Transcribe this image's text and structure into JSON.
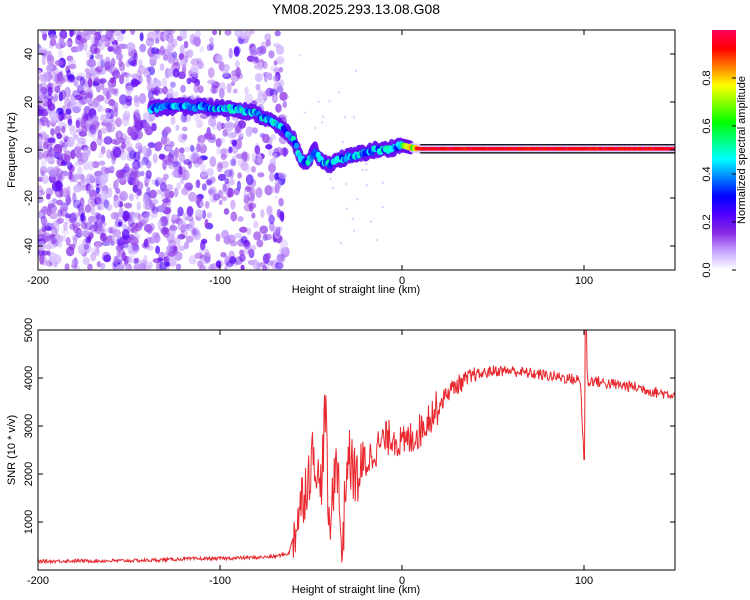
{
  "figure_title": "YM08.2025.293.13.08.G08",
  "chart_data": [
    {
      "type": "heatmap",
      "title": "YM08.2025.293.13.08.G08",
      "xlabel": "Height of straight line (km)",
      "ylabel": "Frequency (Hz)",
      "xlim": [
        -200,
        150
      ],
      "ylim": [
        -50,
        50
      ],
      "xticks": [
        -200,
        -100,
        0,
        100
      ],
      "yticks": [
        -40,
        -20,
        0,
        20,
        40
      ],
      "colorbar": {
        "label": "Normalized spectral amplitude",
        "range": [
          0,
          1
        ],
        "ticks": [
          0.0,
          0.2,
          0.4,
          0.6,
          0.8
        ],
        "tick_labels": [
          "0.0",
          "0.2",
          "0.4",
          "0.6",
          "0.8"
        ],
        "colors": [
          "#ffffff",
          "#c7a6ff",
          "#8a2be2",
          "#5000ff",
          "#0000ff",
          "#0080ff",
          "#00ffff",
          "#00ff80",
          "#00ff00",
          "#80ff00",
          "#ffff00",
          "#ff8000",
          "#ff0000",
          "#ff0060"
        ]
      },
      "ridge": {
        "description": "dominant frequency trace",
        "x": [
          -138,
          -130,
          -120,
          -110,
          -100,
          -90,
          -80,
          -72,
          -66,
          -60,
          -56,
          -52,
          -48,
          -44,
          -40,
          -35,
          -30,
          -25,
          -20,
          -15,
          -10,
          -5,
          0,
          5,
          10,
          20,
          40,
          60,
          80,
          100,
          120,
          150
        ],
        "y": [
          17,
          18,
          18,
          18,
          17.5,
          17,
          15,
          12,
          9,
          5,
          -3,
          -6,
          0,
          -5,
          -6,
          -4,
          -3,
          -2,
          -1,
          0,
          0,
          1,
          2,
          1,
          0.5,
          0.5,
          0.5,
          0.5,
          0.5,
          0.5,
          0.5,
          0.5
        ]
      },
      "noise_region_x": [
        -200,
        -68
      ]
    },
    {
      "type": "line",
      "xlabel": "Height of straight line (km)",
      "ylabel": "SNR (10 * v/v)",
      "xlim": [
        -200,
        150
      ],
      "ylim": [
        0,
        5000
      ],
      "xticks": [
        -200,
        -100,
        0,
        100
      ],
      "yticks": [
        1000,
        2000,
        3000,
        4000,
        5000
      ],
      "series": [
        {
          "name": "SNR",
          "color": "#e8282e",
          "x": [
            -200,
            -180,
            -160,
            -140,
            -120,
            -100,
            -80,
            -70,
            -62,
            -56,
            -52,
            -48,
            -45,
            -42,
            -40,
            -36,
            -33,
            -30,
            -25,
            -20,
            -15,
            -10,
            -5,
            0,
            5,
            10,
            15,
            20,
            25,
            30,
            40,
            50,
            60,
            70,
            80,
            90,
            98,
            100,
            101,
            102,
            105,
            110,
            120,
            130,
            140,
            150
          ],
          "y": [
            180,
            190,
            190,
            200,
            230,
            240,
            260,
            280,
            350,
            1300,
            1900,
            2500,
            1500,
            3400,
            600,
            2600,
            300,
            2400,
            1900,
            2200,
            2500,
            2700,
            2800,
            2600,
            2750,
            2900,
            3200,
            3400,
            3700,
            3850,
            4050,
            4150,
            4150,
            4100,
            4050,
            4000,
            3950,
            2300,
            5000,
            3900,
            3950,
            3900,
            3850,
            3800,
            3700,
            3650
          ]
        }
      ]
    }
  ]
}
